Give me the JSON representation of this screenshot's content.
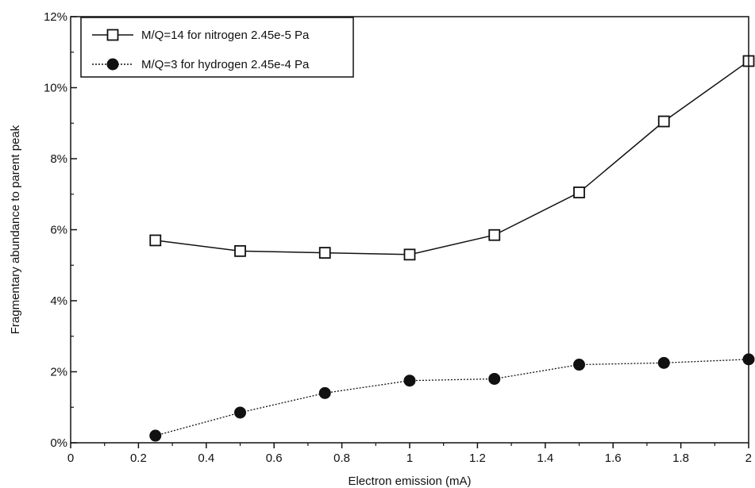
{
  "chart_data": {
    "type": "line",
    "title": "",
    "xlabel": "Electron emission (mA)",
    "ylabel": "Fragmentary abundance to parent peak",
    "xlim": [
      0,
      2
    ],
    "ylim": [
      0,
      12
    ],
    "x_ticks": [
      0,
      0.2,
      0.4,
      0.6,
      0.8,
      1,
      1.2,
      1.4,
      1.6,
      1.8,
      2
    ],
    "x_tick_labels": [
      "0",
      "0.2",
      "0.4",
      "0.6",
      "0.8",
      "1",
      "1.2",
      "1.4",
      "1.6",
      "1.8",
      "2"
    ],
    "y_ticks": [
      0,
      2,
      4,
      6,
      8,
      10,
      12
    ],
    "y_tick_labels": [
      "0%",
      "2%",
      "4%",
      "6%",
      "8%",
      "10%",
      "12%"
    ],
    "grid": false,
    "legend_position": "top-left",
    "series": [
      {
        "name": "M/Q=14 for nitrogen  2.45e-5 Pa",
        "marker": "open-square",
        "line_style": "solid",
        "color": "#111111",
        "x": [
          0.25,
          0.5,
          0.75,
          1.0,
          1.25,
          1.5,
          1.75,
          2.0
        ],
        "values": [
          5.7,
          5.4,
          5.35,
          5.3,
          5.85,
          7.05,
          9.05,
          10.75
        ]
      },
      {
        "name": "M/Q=3 for hydrogen  2.45e-4 Pa",
        "marker": "filled-circle",
        "line_style": "dotted",
        "color": "#111111",
        "x": [
          0.25,
          0.5,
          0.75,
          1.0,
          1.25,
          1.5,
          1.75,
          2.0
        ],
        "values": [
          0.2,
          0.85,
          1.4,
          1.75,
          1.8,
          2.2,
          2.25,
          2.35
        ]
      }
    ]
  }
}
